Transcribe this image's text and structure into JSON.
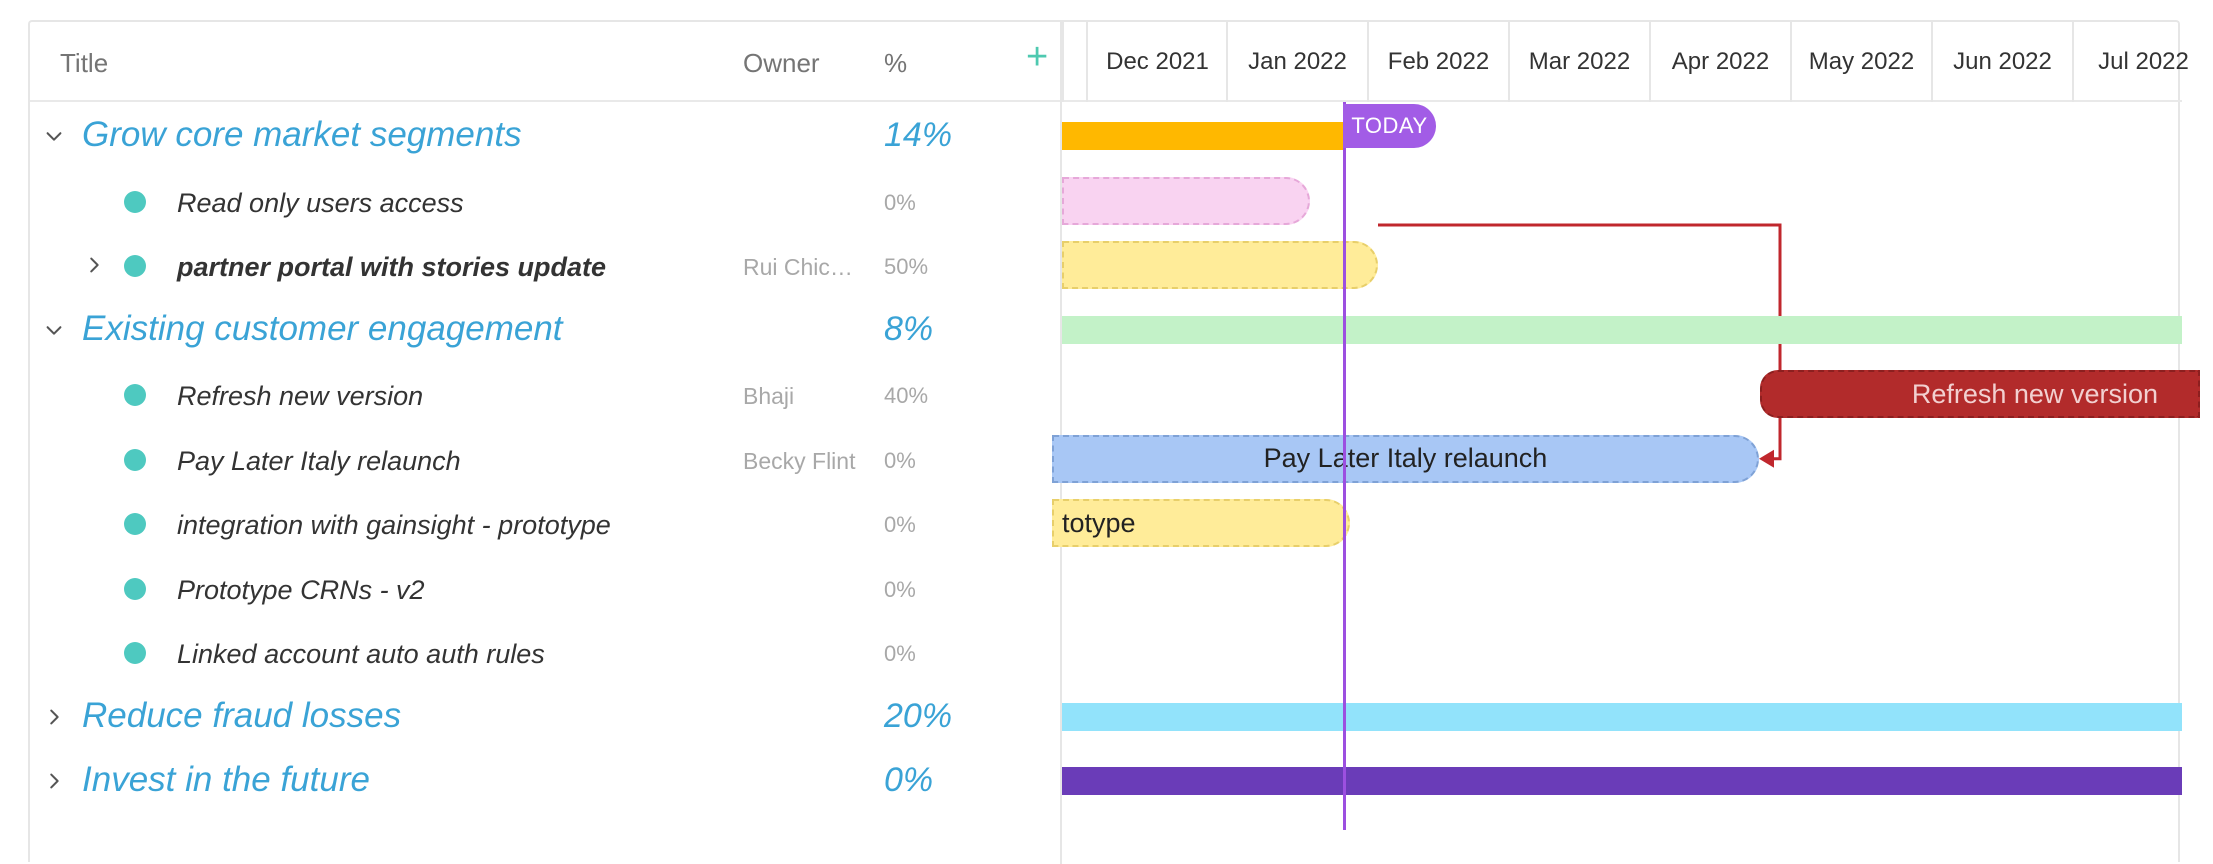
{
  "grid": {
    "header": {
      "title": "Title",
      "owner": "Owner",
      "percent": "%",
      "add": "+"
    },
    "rows": [
      {
        "kind": "group",
        "expanded": true,
        "title": "Grow core market segments",
        "owner": "",
        "percent": "14%"
      },
      {
        "kind": "task",
        "title": "Read only users access",
        "owner": "",
        "percent": "0%"
      },
      {
        "kind": "task",
        "bold": true,
        "collapsed": true,
        "title": "partner portal with stories update",
        "owner": "Rui Chic…",
        "percent": "50%"
      },
      {
        "kind": "group",
        "expanded": true,
        "title": "Existing customer engagement",
        "owner": "",
        "percent": "8%"
      },
      {
        "kind": "task",
        "title": "Refresh new version",
        "owner": "Bhaji",
        "percent": "40%"
      },
      {
        "kind": "task",
        "title": "Pay Later Italy relaunch",
        "owner": "Becky Flint",
        "percent": "0%"
      },
      {
        "kind": "task",
        "title": "integration with gainsight - prototype",
        "owner": "",
        "percent": "0%"
      },
      {
        "kind": "task",
        "title": "Prototype CRNs - v2",
        "owner": "",
        "percent": "0%"
      },
      {
        "kind": "task",
        "title": "Linked account auto auth rules",
        "owner": "",
        "percent": "0%"
      },
      {
        "kind": "group",
        "expanded": false,
        "title": "Reduce fraud losses",
        "owner": "",
        "percent": "20%"
      },
      {
        "kind": "group",
        "expanded": false,
        "title": "Invest in the future",
        "owner": "",
        "percent": "0%"
      }
    ]
  },
  "timeline": {
    "months": [
      "",
      "Dec 2021",
      "Jan 2022",
      "Feb 2022",
      "Mar 2022",
      "Apr 2022",
      "May 2022",
      "Jun 2022",
      "Jul 2022"
    ],
    "today_label": "TODAY",
    "bars": [
      {
        "row": 0,
        "label": "",
        "color": "#ffb800",
        "style": "summary"
      },
      {
        "row": 1,
        "label": "",
        "color": "#f9d3f1",
        "border": "#e6a8d9",
        "style": "task"
      },
      {
        "row": 2,
        "label": "",
        "color": "#ffec99",
        "border": "#e8cf6a",
        "style": "task"
      },
      {
        "row": 3,
        "label": "",
        "color": "#c3f2c8",
        "style": "summary"
      },
      {
        "row": 4,
        "label": "Refresh new version",
        "color": "#b22b2b",
        "border": "#8c1f1f",
        "text_color": "#f2d0d0",
        "style": "task"
      },
      {
        "row": 5,
        "label": "Pay Later Italy relaunch",
        "color": "#a8c7f5",
        "border": "#7fa2d6",
        "text_color": "#222222",
        "style": "task"
      },
      {
        "row": 6,
        "label": "totype",
        "color": "#ffec99",
        "border": "#e8cf6a",
        "text_color": "#222222",
        "style": "task"
      },
      {
        "row": 9,
        "label": "",
        "color": "#92e3fb",
        "style": "summary"
      },
      {
        "row": 10,
        "label": "",
        "color": "#6a3cb8",
        "style": "summary"
      }
    ],
    "dependency_color": "#c0272d"
  },
  "colors": {
    "accent": "#3aa3d6",
    "add": "#4ec9b0",
    "dot": "#4ec9c0",
    "today": "#a25ce6"
  }
}
